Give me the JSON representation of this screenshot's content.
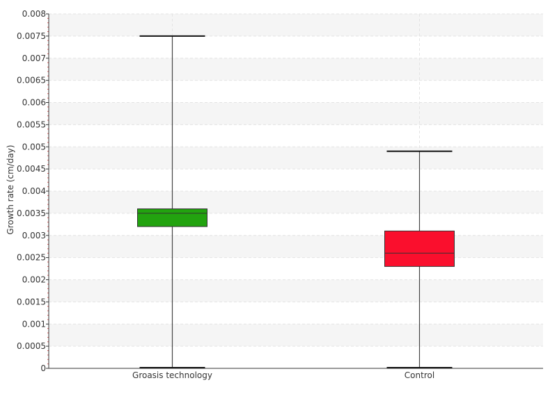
{
  "chart_data": {
    "type": "box",
    "title": "",
    "xlabel": "",
    "ylabel": "Growth rate (cm/day)",
    "ylim": [
      0,
      0.008
    ],
    "yticks": [
      "0",
      "0.0005",
      "0.001",
      "0.0015",
      "0.002",
      "0.0025",
      "0.003",
      "0.0035",
      "0.004",
      "0.0045",
      "0.005",
      "0.0055",
      "0.006",
      "0.0065",
      "0.007",
      "0.0075",
      "0.008"
    ],
    "grid": true,
    "categories": [
      "Groasis technology",
      "Control"
    ],
    "boxes": [
      {
        "category": "Groasis technology",
        "min": 0,
        "q1": 0.0032,
        "median": 0.0035,
        "q3": 0.0036,
        "max": 0.0075,
        "color": "#22a30f"
      },
      {
        "category": "Control",
        "min": 0,
        "q1": 0.0023,
        "median": 0.0026,
        "q3": 0.0031,
        "max": 0.0049,
        "color": "#fa0f2d"
      }
    ]
  }
}
